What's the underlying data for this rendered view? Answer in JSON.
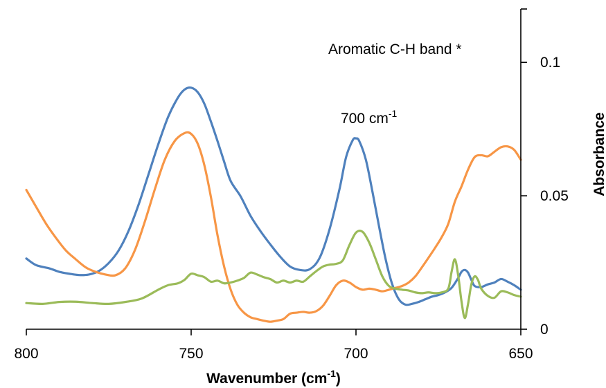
{
  "chart_data": {
    "type": "line",
    "xlabel": "Wavenumber (cm",
    "xlabel_sup": "-1",
    "xlabel_end": ")",
    "ylabel": "Absorbance",
    "x_reversed": true,
    "xlim": [
      800,
      650
    ],
    "ylim": [
      0,
      0.12
    ],
    "x_ticks": [
      800,
      750,
      700,
      650
    ],
    "y_ticks": [
      0,
      0.05,
      0.1
    ],
    "x_tick_labels": [
      "800",
      "750",
      "700",
      "650"
    ],
    "y_tick_labels": [
      "0",
      "0.05",
      "0.1"
    ],
    "y_axis_position": "right",
    "grid": false,
    "annotations": [
      {
        "id": "aromatic",
        "text": "Aromatic C-H band *",
        "sup": ""
      },
      {
        "id": "peak700",
        "text": "700 cm",
        "sup": "-1"
      }
    ],
    "series": [
      {
        "color": "#4F81BD",
        "x": [
          800,
          797,
          793,
          790,
          787,
          784,
          781,
          778,
          775,
          772,
          769,
          766,
          763,
          760,
          757,
          754,
          752,
          750,
          748,
          746,
          744,
          742,
          740,
          738,
          735,
          732,
          729,
          726,
          723,
          720,
          717,
          714,
          711,
          708,
          705,
          703,
          701,
          700,
          699,
          697,
          695,
          693,
          691,
          689,
          687,
          685,
          683,
          681,
          679,
          677,
          675,
          673,
          671,
          669,
          668,
          667,
          666,
          665,
          664,
          662,
          660,
          658,
          656,
          654,
          652,
          650
        ],
        "y": [
          0.0265,
          0.024,
          0.0228,
          0.0215,
          0.0208,
          0.0203,
          0.0205,
          0.0218,
          0.0248,
          0.0295,
          0.0368,
          0.0465,
          0.0578,
          0.0692,
          0.0795,
          0.0868,
          0.0898,
          0.0905,
          0.0888,
          0.0845,
          0.0778,
          0.0705,
          0.0628,
          0.0555,
          0.0498,
          0.0425,
          0.0368,
          0.0318,
          0.0272,
          0.0235,
          0.0222,
          0.0225,
          0.0268,
          0.0375,
          0.0525,
          0.0645,
          0.0708,
          0.0715,
          0.0705,
          0.0635,
          0.0515,
          0.0385,
          0.0262,
          0.0168,
          0.0112,
          0.0092,
          0.0095,
          0.0102,
          0.0112,
          0.0122,
          0.0128,
          0.0138,
          0.0155,
          0.0192,
          0.0215,
          0.0222,
          0.0212,
          0.0185,
          0.0162,
          0.0158,
          0.0168,
          0.0175,
          0.0188,
          0.0178,
          0.0165,
          0.0148
        ]
      },
      {
        "color": "#F79646",
        "x": [
          800,
          797,
          794,
          791,
          788,
          785,
          782,
          779,
          776,
          773,
          770,
          767,
          764,
          761,
          758,
          755,
          752,
          750,
          748,
          746,
          744,
          742,
          740,
          738,
          736,
          734,
          732,
          730,
          728,
          726,
          724,
          722,
          720,
          718,
          716,
          714,
          712,
          710,
          708,
          706,
          704,
          702,
          700,
          698,
          696,
          694,
          692,
          690,
          688,
          686,
          684,
          682,
          680,
          678,
          676,
          674,
          672,
          670,
          668,
          666,
          664,
          662,
          660,
          658,
          656,
          654,
          652,
          650
        ],
        "y": [
          0.0522,
          0.0458,
          0.0395,
          0.0342,
          0.0295,
          0.0262,
          0.0232,
          0.0215,
          0.0205,
          0.0202,
          0.0228,
          0.0298,
          0.0405,
          0.0525,
          0.0635,
          0.0705,
          0.0735,
          0.0732,
          0.0695,
          0.0615,
          0.0495,
          0.0352,
          0.0235,
          0.0148,
          0.0092,
          0.0062,
          0.0045,
          0.0038,
          0.0032,
          0.0028,
          0.0032,
          0.0038,
          0.0058,
          0.0062,
          0.0065,
          0.0062,
          0.0068,
          0.0088,
          0.0125,
          0.0165,
          0.0182,
          0.0175,
          0.0158,
          0.0148,
          0.0152,
          0.0148,
          0.0142,
          0.0148,
          0.0155,
          0.0162,
          0.0175,
          0.0198,
          0.0232,
          0.0268,
          0.0305,
          0.0345,
          0.0395,
          0.0478,
          0.0535,
          0.0598,
          0.0645,
          0.0652,
          0.0648,
          0.0665,
          0.0682,
          0.0685,
          0.0672,
          0.0635
        ]
      },
      {
        "color": "#9BBB59",
        "x": [
          800,
          795,
          790,
          785,
          780,
          775,
          770,
          765,
          760,
          757,
          754,
          752,
          750,
          748,
          746,
          744,
          742,
          740,
          738,
          736,
          734,
          732,
          730,
          728,
          726,
          724,
          722,
          720,
          718,
          716,
          714,
          712,
          710,
          708,
          706,
          704,
          702,
          700,
          698,
          696,
          694,
          692,
          690,
          688,
          686,
          684,
          682,
          680,
          678,
          676,
          674,
          672,
          671,
          670,
          669,
          668,
          667,
          666,
          665,
          664,
          663,
          662,
          660,
          658,
          656,
          654,
          652,
          650
        ],
        "y": [
          0.0098,
          0.0095,
          0.0102,
          0.0103,
          0.0098,
          0.0095,
          0.0102,
          0.0115,
          0.0148,
          0.0165,
          0.0172,
          0.0185,
          0.0208,
          0.0202,
          0.0195,
          0.0178,
          0.0182,
          0.0172,
          0.0175,
          0.0182,
          0.0192,
          0.0212,
          0.0205,
          0.0195,
          0.0188,
          0.0175,
          0.0182,
          0.0175,
          0.0182,
          0.0178,
          0.0198,
          0.0218,
          0.0235,
          0.0242,
          0.0245,
          0.0258,
          0.0315,
          0.0362,
          0.0365,
          0.0325,
          0.0262,
          0.0198,
          0.0162,
          0.0152,
          0.0148,
          0.0145,
          0.0138,
          0.0135,
          0.0138,
          0.0135,
          0.0138,
          0.0152,
          0.0215,
          0.0262,
          0.0202,
          0.0105,
          0.0042,
          0.0095,
          0.0168,
          0.0198,
          0.0185,
          0.0152,
          0.0125,
          0.0118,
          0.0142,
          0.0138,
          0.0128,
          0.0122
        ]
      }
    ]
  }
}
